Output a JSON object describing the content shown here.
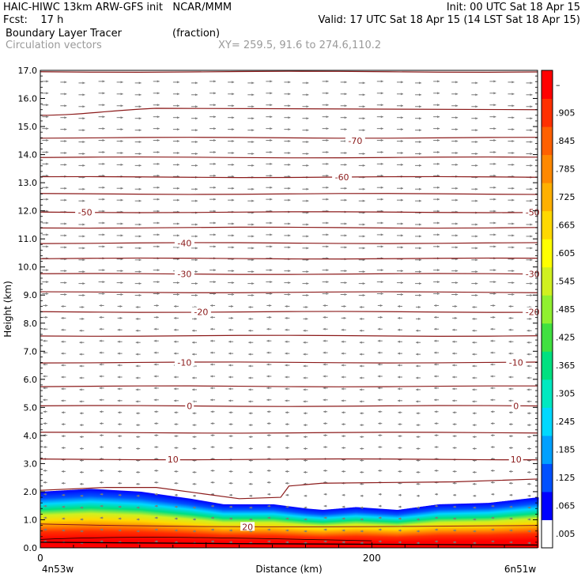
{
  "header": {
    "model_line": "HAIC-HIWC 13km ARW-GFS init   NCAR/MMM",
    "init_line": "Init: 00 UTC Sat 18 Apr 15",
    "fcst_line": "Fcst:    17 h",
    "valid_line": "Valid: 17 UTC Sat 18 Apr 15 (14 LST Sat 18 Apr 15)",
    "field_line": "Boundary Layer Tracer",
    "field_units": "(fraction)",
    "vector_line": "Circulation vectors",
    "xy_line": "XY= 259.5, 91.6 to 274.6,110.2"
  },
  "colors": {
    "contour": "#8b1a1a",
    "vector": "#7a7a7a",
    "axis": "#000000"
  },
  "chart_data": {
    "type": "cross-section",
    "xlabel": "Distance (km)",
    "ylabel": "Height (km)",
    "xlim": [
      0,
      300
    ],
    "ylim": [
      0,
      17
    ],
    "yticks": [
      "0.0",
      "1.0",
      "2.0",
      "3.0",
      "4.0",
      "5.0",
      "6.0",
      "7.0",
      "8.0",
      "9.0",
      "10.0",
      "11.0",
      "12.0",
      "13.0",
      "14.0",
      "15.0",
      "16.0",
      "17.0"
    ],
    "xticks": [
      {
        "x": 0,
        "label": "0"
      },
      {
        "x": 200,
        "label": "200"
      }
    ],
    "x_start_label": "4n53w",
    "x_end_label": "6n51w",
    "colorbar": {
      "labels": [
        ".005",
        ".065",
        ".125",
        ".185",
        ".245",
        ".305",
        ".365",
        ".425",
        ".485",
        ".545",
        ".605",
        ".665",
        ".725",
        ".785",
        ".845",
        ".905",
        "–"
      ],
      "colors": [
        "#ffffff",
        "#0000ff",
        "#0050ff",
        "#00a0ff",
        "#00d8ff",
        "#00e8c0",
        "#00e080",
        "#40e040",
        "#90f030",
        "#d0f020",
        "#ffff00",
        "#ffd800",
        "#ffb000",
        "#ff8800",
        "#ff6000",
        "#ff3000",
        "#ff0000"
      ]
    },
    "contour_labels": [
      {
        "x": 190,
        "y": 14.5,
        "label": "-70"
      },
      {
        "x": 182,
        "y": 13.2,
        "label": "-60"
      },
      {
        "x": 27,
        "y": 11.95,
        "label": "-50"
      },
      {
        "x": 297,
        "y": 11.95,
        "label": "-50"
      },
      {
        "x": 87,
        "y": 10.85,
        "label": "-40"
      },
      {
        "x": 87,
        "y": 9.75,
        "label": "-30"
      },
      {
        "x": 297,
        "y": 9.75,
        "label": "-30"
      },
      {
        "x": 97,
        "y": 8.4,
        "label": "-20"
      },
      {
        "x": 297,
        "y": 8.4,
        "label": "-20"
      },
      {
        "x": 87,
        "y": 6.6,
        "label": "-10"
      },
      {
        "x": 287,
        "y": 6.6,
        "label": "-10"
      },
      {
        "x": 90,
        "y": 5.05,
        "label": "0"
      },
      {
        "x": 287,
        "y": 5.05,
        "label": "0"
      },
      {
        "x": 80,
        "y": 3.15,
        "label": "10"
      },
      {
        "x": 287,
        "y": 3.15,
        "label": "10"
      },
      {
        "x": 125,
        "y": 0.75,
        "label": "20"
      }
    ],
    "contour_levels_km": [
      16.95,
      15.55,
      14.6,
      13.9,
      13.2,
      12.6,
      11.95,
      11.4,
      10.85,
      10.3,
      9.75,
      9.1,
      8.4,
      7.55,
      6.6,
      5.75,
      5.05,
      4.1,
      3.15
    ],
    "tracer_top_km": [
      {
        "x": 0,
        "y": 2.0
      },
      {
        "x": 30,
        "y": 2.1
      },
      {
        "x": 60,
        "y": 2.0
      },
      {
        "x": 90,
        "y": 1.75
      },
      {
        "x": 110,
        "y": 1.55
      },
      {
        "x": 140,
        "y": 1.55
      },
      {
        "x": 160,
        "y": 1.4
      },
      {
        "x": 170,
        "y": 1.35
      },
      {
        "x": 190,
        "y": 1.45
      },
      {
        "x": 215,
        "y": 1.35
      },
      {
        "x": 240,
        "y": 1.55
      },
      {
        "x": 270,
        "y": 1.6
      },
      {
        "x": 300,
        "y": 1.8
      }
    ],
    "pbl_line_km": [
      {
        "x": 0,
        "y": 2.05
      },
      {
        "x": 40,
        "y": 2.15
      },
      {
        "x": 70,
        "y": 2.15
      },
      {
        "x": 95,
        "y": 1.95
      },
      {
        "x": 120,
        "y": 1.75
      },
      {
        "x": 145,
        "y": 1.8
      },
      {
        "x": 150,
        "y": 2.2
      },
      {
        "x": 170,
        "y": 2.3
      },
      {
        "x": 250,
        "y": 2.35
      },
      {
        "x": 300,
        "y": 2.45
      }
    ]
  }
}
